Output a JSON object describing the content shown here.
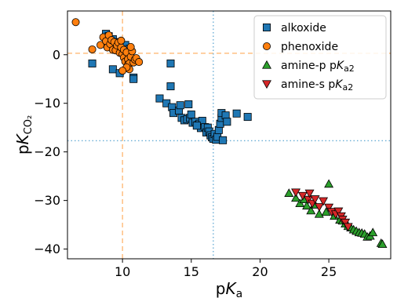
{
  "chart_data": {
    "type": "scatter",
    "xlabel_text": "p",
    "xlabel_italic": "K",
    "xlabel_sub": "a",
    "ylabel_text": "p",
    "ylabel_italic": "K",
    "ylabel_sub": "CO₂",
    "xlim": [
      6,
      29.5
    ],
    "ylim": [
      -42,
      9
    ],
    "xticks": [
      10,
      15,
      20,
      25
    ],
    "yticks": [
      0,
      -10,
      -20,
      -30,
      -40
    ],
    "x_tick_labels": [
      "10",
      "15",
      "20",
      "25"
    ],
    "y_tick_labels": [
      "0",
      "−10",
      "−20",
      "−30",
      "−40"
    ],
    "grid": false,
    "legend_position": "top-right",
    "reference_lines": [
      {
        "orientation": "vertical",
        "value": 10.0,
        "style": "dashed",
        "color": "#ffbb78"
      },
      {
        "orientation": "horizontal",
        "value": 0.3,
        "style": "dashed",
        "color": "#ffbb78"
      },
      {
        "orientation": "vertical",
        "value": 16.6,
        "style": "dotted",
        "color": "#6baed6"
      },
      {
        "orientation": "horizontal",
        "value": -17.7,
        "style": "dotted",
        "color": "#6baed6"
      }
    ],
    "series": [
      {
        "name": "alkoxide",
        "marker": "square",
        "color": "#1f77b4",
        "points": [
          [
            8.8,
            4.3
          ],
          [
            9.0,
            3.8
          ],
          [
            9.3,
            3.2
          ],
          [
            9.6,
            2.6
          ],
          [
            10.2,
            2.0
          ],
          [
            10.5,
            1.2
          ],
          [
            7.8,
            -1.8
          ],
          [
            9.3,
            -3.0
          ],
          [
            9.8,
            -3.8
          ],
          [
            10.8,
            -4.7
          ],
          [
            10.8,
            -5.0
          ],
          [
            13.5,
            -1.8
          ],
          [
            13.5,
            -6.5
          ],
          [
            12.7,
            -9.0
          ],
          [
            13.2,
            -10.0
          ],
          [
            13.6,
            -10.8
          ],
          [
            13.7,
            -12.0
          ],
          [
            14.1,
            -11.5
          ],
          [
            14.2,
            -10.4
          ],
          [
            14.3,
            -13.0
          ],
          [
            14.5,
            -13.5
          ],
          [
            14.7,
            -13.3
          ],
          [
            14.9,
            -13.0
          ],
          [
            15.0,
            -12.3
          ],
          [
            15.1,
            -14.0
          ],
          [
            15.3,
            -13.8
          ],
          [
            15.5,
            -14.5
          ],
          [
            15.6,
            -14.2
          ],
          [
            15.7,
            -15.1
          ],
          [
            15.8,
            -13.6
          ],
          [
            16.0,
            -14.9
          ],
          [
            16.1,
            -16.0
          ],
          [
            16.2,
            -15.0
          ],
          [
            16.3,
            -15.8
          ],
          [
            16.4,
            -16.6
          ],
          [
            16.5,
            -17.0
          ],
          [
            16.6,
            -17.3
          ],
          [
            16.7,
            -16.3
          ],
          [
            16.8,
            -17.5
          ],
          [
            16.9,
            -16.9
          ],
          [
            17.0,
            -15.5
          ],
          [
            17.1,
            -14.2
          ],
          [
            17.2,
            -13.0
          ],
          [
            17.3,
            -17.6
          ],
          [
            17.2,
            -12.0
          ],
          [
            17.5,
            -12.5
          ],
          [
            17.6,
            -13.8
          ],
          [
            18.3,
            -12.1
          ],
          [
            19.1,
            -12.8
          ],
          [
            14.8,
            -10.2
          ],
          [
            15.4,
            -14.6
          ]
        ]
      },
      {
        "name": "phenoxide",
        "marker": "circle",
        "color": "#ff7f0e",
        "points": [
          [
            6.6,
            6.7
          ],
          [
            7.8,
            1.1
          ],
          [
            8.4,
            2.0
          ],
          [
            8.6,
            3.6
          ],
          [
            8.8,
            2.8
          ],
          [
            8.9,
            1.5
          ],
          [
            9.0,
            4.0
          ],
          [
            9.1,
            2.2
          ],
          [
            9.2,
            3.0
          ],
          [
            9.3,
            1.0
          ],
          [
            9.4,
            2.6
          ],
          [
            9.5,
            0.9
          ],
          [
            9.6,
            1.9
          ],
          [
            9.7,
            2.5
          ],
          [
            9.8,
            0.4
          ],
          [
            9.9,
            1.5
          ],
          [
            10.0,
            0.1
          ],
          [
            10.1,
            1.0
          ],
          [
            10.1,
            -0.6
          ],
          [
            10.2,
            -1.4
          ],
          [
            10.3,
            0.5
          ],
          [
            10.4,
            -2.0
          ],
          [
            10.4,
            -0.9
          ],
          [
            10.5,
            -1.8
          ],
          [
            10.5,
            -3.0
          ],
          [
            10.6,
            -0.4
          ],
          [
            10.7,
            0.7
          ],
          [
            10.8,
            -1.6
          ],
          [
            10.9,
            -1.0
          ],
          [
            11.0,
            -0.7
          ],
          [
            11.2,
            -1.5
          ],
          [
            10.3,
            -2.6
          ],
          [
            10.0,
            -3.3
          ],
          [
            9.9,
            2.9
          ],
          [
            10.6,
            1.6
          ]
        ]
      },
      {
        "name": "amine-p pKa2",
        "legend_text": "amine-p p",
        "legend_italic": "K",
        "legend_sub": "a2",
        "marker": "triangle-up",
        "color": "#2ca02c",
        "points": [
          [
            22.1,
            -28.5
          ],
          [
            22.6,
            -29.5
          ],
          [
            22.9,
            -30.6
          ],
          [
            23.2,
            -29.8
          ],
          [
            23.4,
            -31.1
          ],
          [
            23.7,
            -32.1
          ],
          [
            24.0,
            -30.9
          ],
          [
            24.3,
            -32.8
          ],
          [
            24.8,
            -32.4
          ],
          [
            25.0,
            -26.6
          ],
          [
            25.4,
            -33.2
          ],
          [
            25.8,
            -34.0
          ],
          [
            26.0,
            -34.2
          ],
          [
            26.2,
            -34.8
          ],
          [
            26.4,
            -35.3
          ],
          [
            26.6,
            -35.6
          ],
          [
            26.8,
            -36.0
          ],
          [
            27.0,
            -36.3
          ],
          [
            27.2,
            -36.6
          ],
          [
            27.4,
            -36.7
          ],
          [
            27.6,
            -36.9
          ],
          [
            27.8,
            -37.5
          ],
          [
            28.0,
            -37.3
          ],
          [
            28.2,
            -36.6
          ],
          [
            28.8,
            -38.8
          ],
          [
            28.9,
            -39.0
          ]
        ]
      },
      {
        "name": "amine-s pKa2",
        "legend_text": "amine-s p",
        "legend_italic": "K",
        "legend_sub": "a2",
        "marker": "triangle-down",
        "color": "#d62728",
        "points": [
          [
            22.6,
            -28.3
          ],
          [
            23.1,
            -29.0
          ],
          [
            23.5,
            -29.8
          ],
          [
            23.8,
            -30.6
          ],
          [
            24.0,
            -29.7
          ],
          [
            24.3,
            -31.3
          ],
          [
            24.6,
            -30.1
          ],
          [
            25.0,
            -31.4
          ],
          [
            25.2,
            -32.3
          ],
          [
            25.5,
            -32.8
          ],
          [
            25.7,
            -32.2
          ],
          [
            25.9,
            -33.2
          ],
          [
            26.0,
            -33.9
          ],
          [
            26.2,
            -34.5
          ],
          [
            26.4,
            -35.4
          ],
          [
            23.6,
            -28.5
          ]
        ]
      }
    ]
  }
}
